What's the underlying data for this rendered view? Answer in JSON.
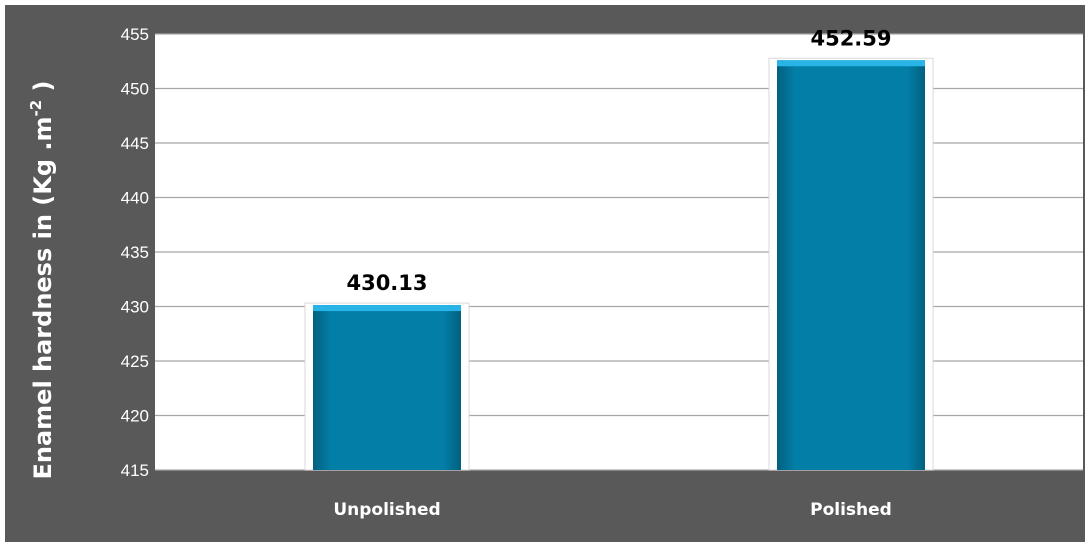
{
  "chart_data": {
    "type": "bar",
    "categories": [
      "Unpolished",
      "Polished"
    ],
    "values": [
      430.13,
      452.59
    ],
    "value_labels": [
      "430.13",
      "452.59"
    ],
    "title": "",
    "xlabel": "",
    "ylabel": "Enamel hardness in (Kg .m",
    "ylabel_superscript": "-2",
    "ylabel_suffix": " )",
    "ylim": [
      415,
      455
    ],
    "yticks": [
      415,
      420,
      425,
      430,
      435,
      440,
      445,
      450,
      455
    ],
    "grid": true,
    "legend": "none"
  },
  "colors": {
    "frame": "#595959",
    "plot_background": "#ffffff",
    "bar": "#037ea6",
    "bar_top": "#28b4e6",
    "gridline": "#a6a6a6",
    "text_on_frame": "#ffffff",
    "value_label": "#000000"
  }
}
